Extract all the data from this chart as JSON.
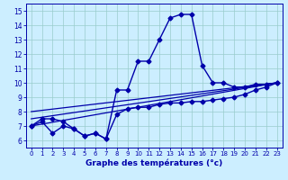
{
  "xlabel": "Graphe des températures (°c)",
  "bg_color": "#cceeff",
  "line_color": "#0000aa",
  "grid_color": "#99cccc",
  "xlim": [
    -0.5,
    23.5
  ],
  "ylim": [
    5.5,
    15.5
  ],
  "yticks": [
    6,
    7,
    8,
    9,
    10,
    11,
    12,
    13,
    14,
    15
  ],
  "xticks": [
    0,
    1,
    2,
    3,
    4,
    5,
    6,
    7,
    8,
    9,
    10,
    11,
    12,
    13,
    14,
    15,
    16,
    17,
    18,
    19,
    20,
    21,
    22,
    23
  ],
  "series": [
    {
      "x": [
        0,
        1,
        2,
        3,
        4,
        5,
        6,
        7,
        8,
        9,
        10,
        11,
        12,
        13,
        14,
        15,
        16,
        17,
        18,
        19,
        20,
        21,
        22,
        23
      ],
      "y": [
        7.0,
        7.5,
        7.5,
        7.3,
        6.8,
        6.3,
        6.5,
        6.1,
        9.5,
        9.5,
        11.5,
        11.5,
        13.0,
        14.5,
        14.75,
        14.75,
        11.2,
        10.0,
        10.0,
        9.7,
        9.7,
        9.9,
        9.9,
        10.0
      ],
      "marker": "D",
      "markersize": 2.5,
      "linewidth": 1.0
    },
    {
      "x": [
        0,
        1,
        2,
        3,
        4,
        5,
        6,
        7,
        8,
        9,
        10,
        11,
        12,
        13,
        14,
        15,
        16,
        17,
        18,
        19,
        20,
        21,
        22,
        23
      ],
      "y": [
        7.0,
        7.3,
        6.5,
        7.0,
        6.8,
        6.3,
        6.5,
        6.1,
        7.8,
        8.2,
        8.3,
        8.3,
        8.5,
        8.6,
        8.6,
        8.7,
        8.7,
        8.8,
        8.9,
        9.0,
        9.2,
        9.5,
        9.7,
        10.0
      ],
      "marker": "D",
      "markersize": 2.5,
      "linewidth": 1.0
    },
    {
      "x": [
        0,
        23
      ],
      "y": [
        7.0,
        10.0
      ],
      "marker": null,
      "markersize": 0,
      "linewidth": 0.9
    },
    {
      "x": [
        0,
        23
      ],
      "y": [
        7.5,
        10.0
      ],
      "marker": null,
      "markersize": 0,
      "linewidth": 0.9
    },
    {
      "x": [
        0,
        23
      ],
      "y": [
        8.0,
        10.0
      ],
      "marker": null,
      "markersize": 0,
      "linewidth": 0.9
    }
  ]
}
